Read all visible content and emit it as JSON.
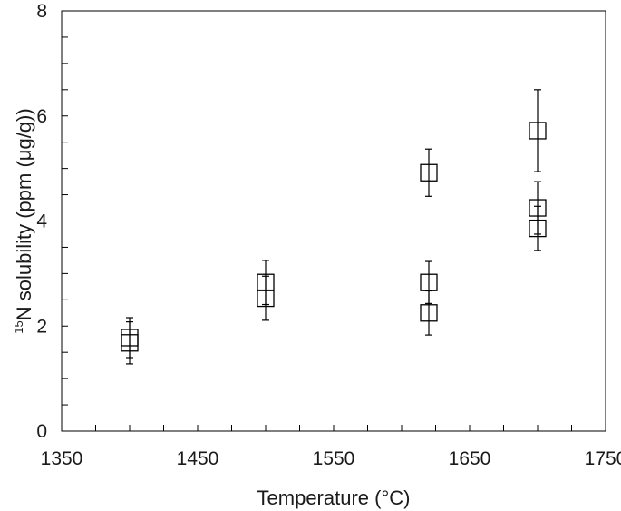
{
  "chart_data": {
    "type": "scatter",
    "title": "",
    "xlabel": "Temperature (°C)",
    "ylabel": {
      "superscript": "15",
      "main": "N solubility (ppm (μg/g))"
    },
    "xlim": [
      1350,
      1750
    ],
    "ylim": [
      0,
      8
    ],
    "xticks": [
      "1350",
      "1450",
      "1550",
      "1650",
      "1750"
    ],
    "yticks": [
      "0",
      "2",
      "4",
      "6",
      "8"
    ],
    "x_minor_step": 25,
    "y_minor_step": 0.5,
    "grid": false,
    "legend": "none",
    "marker": "open-square",
    "series": [
      {
        "points": [
          {
            "x": 1400,
            "y": 1.78,
            "err": 0.38
          },
          {
            "x": 1400,
            "y": 1.68,
            "err": 0.4
          },
          {
            "x": 1500,
            "y": 2.83,
            "err": 0.42
          },
          {
            "x": 1500,
            "y": 2.53,
            "err": 0.42
          },
          {
            "x": 1620,
            "y": 4.92,
            "err": 0.45
          },
          {
            "x": 1620,
            "y": 2.83,
            "err": 0.4
          },
          {
            "x": 1620,
            "y": 2.25,
            "err": 0.42
          },
          {
            "x": 1700,
            "y": 5.72,
            "err": 0.78
          },
          {
            "x": 1700,
            "y": 4.25,
            "err": 0.5
          },
          {
            "x": 1700,
            "y": 3.86,
            "err": 0.42
          }
        ]
      }
    ]
  }
}
